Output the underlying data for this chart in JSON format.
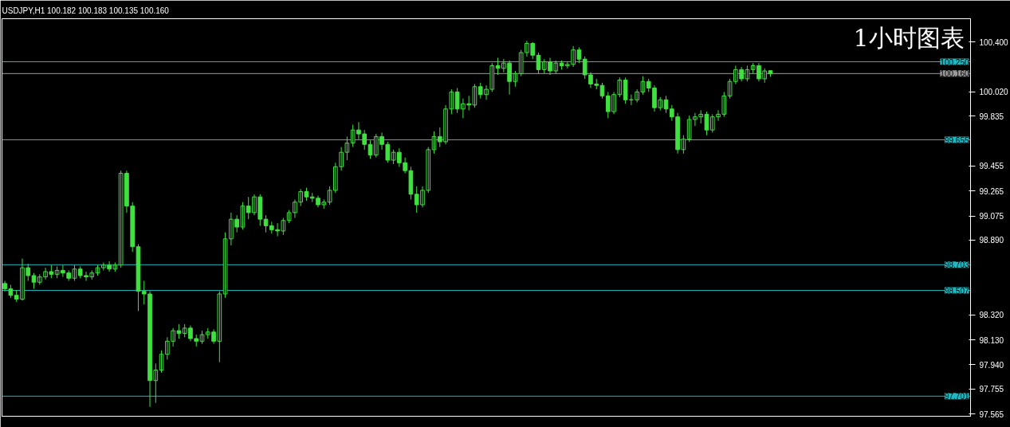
{
  "chart_data": {
    "type": "candlestick",
    "title": "USDJPY,H1  100.182 100.183 100.135 100.160",
    "annotations": [
      "1小时图表"
    ],
    "categories": [
      null,
      null,
      null,
      null,
      null,
      null,
      null,
      null,
      null,
      null,
      null,
      null,
      null,
      null,
      null,
      null,
      null,
      null,
      null,
      null,
      null,
      null,
      null,
      null,
      null,
      null,
      null,
      null,
      null,
      null,
      null,
      null,
      null,
      null,
      null,
      null,
      null,
      null,
      null,
      null,
      null,
      null,
      null,
      null,
      null,
      null,
      null,
      null,
      null,
      null,
      null,
      null,
      null,
      null,
      null,
      null,
      null,
      null,
      null,
      null,
      null,
      null,
      null,
      null,
      null,
      null,
      null,
      null,
      null,
      null,
      null,
      null,
      null,
      null,
      null,
      null,
      null,
      null,
      null,
      null,
      null,
      null,
      null,
      null,
      null,
      null,
      null,
      null,
      null,
      null,
      null,
      null,
      null,
      null,
      null,
      null,
      null,
      null,
      null,
      null,
      null,
      null,
      null,
      null,
      null,
      null,
      null,
      null,
      null,
      null,
      null,
      null,
      null,
      null,
      null,
      null,
      null,
      null,
      null,
      null,
      null,
      null,
      null,
      null,
      null,
      null,
      null,
      null,
      null,
      null,
      null,
      null,
      null,
      null,
      null,
      null,
      null,
      null,
      null,
      null,
      null,
      null,
      null,
      null,
      null,
      null,
      null,
      null,
      null,
      null,
      null,
      null,
      null,
      null,
      null,
      null,
      null,
      null,
      null,
      null,
      null,
      null,
      null,
      null,
      null,
      null,
      null
    ],
    "series": [
      {
        "color": "#40e040",
        "ohlc": [
          [
            98.56,
            98.58,
            98.5,
            98.52
          ],
          [
            98.52,
            98.55,
            98.45,
            98.47
          ],
          [
            98.47,
            98.51,
            98.42,
            98.44
          ],
          [
            98.44,
            98.75,
            98.43,
            98.68
          ],
          [
            98.68,
            98.71,
            98.58,
            98.62
          ],
          [
            98.62,
            98.64,
            98.52,
            98.57
          ],
          [
            98.57,
            98.63,
            98.55,
            98.61
          ],
          [
            98.61,
            98.68,
            98.59,
            98.65
          ],
          [
            98.65,
            98.7,
            98.6,
            98.63
          ],
          [
            98.63,
            98.69,
            98.6,
            98.66
          ],
          [
            98.66,
            98.7,
            98.61,
            98.64
          ],
          [
            98.64,
            98.66,
            98.58,
            98.6
          ],
          [
            98.6,
            98.7,
            98.58,
            98.67
          ],
          [
            98.67,
            98.69,
            98.6,
            98.62
          ],
          [
            98.62,
            98.65,
            98.58,
            98.61
          ],
          [
            98.61,
            98.66,
            98.59,
            98.64
          ],
          [
            98.64,
            98.7,
            98.62,
            98.68
          ],
          [
            98.68,
            98.72,
            98.66,
            98.7
          ],
          [
            98.7,
            98.73,
            98.65,
            98.67
          ],
          [
            98.67,
            98.72,
            98.65,
            98.7
          ],
          [
            98.7,
            99.42,
            98.68,
            99.4
          ],
          [
            99.4,
            99.42,
            99.1,
            99.15
          ],
          [
            99.15,
            99.18,
            98.8,
            98.84
          ],
          [
            98.84,
            98.86,
            98.35,
            98.5
          ],
          [
            98.5,
            98.58,
            98.4,
            98.48
          ],
          [
            98.48,
            98.5,
            97.62,
            97.82
          ],
          [
            97.82,
            97.95,
            97.65,
            97.9
          ],
          [
            97.9,
            98.05,
            97.88,
            98.02
          ],
          [
            98.02,
            98.15,
            97.98,
            98.12
          ],
          [
            98.12,
            98.22,
            98.08,
            98.2
          ],
          [
            98.2,
            98.25,
            98.14,
            98.18
          ],
          [
            98.18,
            98.25,
            98.15,
            98.22
          ],
          [
            98.22,
            98.24,
            98.12,
            98.14
          ],
          [
            98.14,
            98.17,
            98.08,
            98.12
          ],
          [
            98.12,
            98.2,
            98.1,
            98.17
          ],
          [
            98.17,
            98.22,
            98.14,
            98.19
          ],
          [
            98.19,
            98.21,
            98.1,
            98.12
          ],
          [
            98.12,
            98.5,
            97.96,
            98.48
          ],
          [
            98.48,
            98.95,
            98.45,
            98.9
          ],
          [
            98.9,
            99.1,
            98.85,
            99.05
          ],
          [
            99.05,
            99.08,
            98.95,
            98.99
          ],
          [
            98.99,
            99.18,
            98.97,
            99.15
          ],
          [
            99.15,
            99.22,
            99.05,
            99.1
          ],
          [
            99.1,
            99.24,
            99.08,
            99.22
          ],
          [
            99.22,
            99.24,
            99.0,
            99.05
          ],
          [
            99.05,
            99.08,
            98.95,
            99.0
          ],
          [
            99.0,
            99.03,
            98.94,
            98.97
          ],
          [
            98.97,
            99.02,
            98.92,
            98.96
          ],
          [
            98.96,
            99.06,
            98.93,
            99.04
          ],
          [
            99.04,
            99.12,
            99.02,
            99.1
          ],
          [
            99.1,
            99.2,
            99.06,
            99.18
          ],
          [
            99.18,
            99.28,
            99.15,
            99.26
          ],
          [
            99.26,
            99.29,
            99.19,
            99.22
          ],
          [
            99.22,
            99.25,
            99.18,
            99.21
          ],
          [
            99.21,
            99.23,
            99.14,
            99.16
          ],
          [
            99.16,
            99.2,
            99.13,
            99.18
          ],
          [
            99.18,
            99.3,
            99.16,
            99.27
          ],
          [
            99.27,
            99.48,
            99.25,
            99.45
          ],
          [
            99.45,
            99.6,
            99.42,
            99.56
          ],
          [
            99.56,
            99.68,
            99.5,
            99.63
          ],
          [
            99.63,
            99.77,
            99.6,
            99.73
          ],
          [
            99.73,
            99.79,
            99.66,
            99.7
          ],
          [
            99.7,
            99.73,
            99.58,
            99.62
          ],
          [
            99.62,
            99.65,
            99.51,
            99.54
          ],
          [
            99.54,
            99.7,
            99.52,
            99.68
          ],
          [
            99.68,
            99.71,
            99.58,
            99.62
          ],
          [
            99.62,
            99.64,
            99.48,
            99.5
          ],
          [
            99.5,
            99.58,
            99.47,
            99.56
          ],
          [
            99.56,
            99.59,
            99.45,
            99.48
          ],
          [
            99.48,
            99.52,
            99.4,
            99.42
          ],
          [
            99.42,
            99.45,
            99.2,
            99.24
          ],
          [
            99.24,
            99.3,
            99.1,
            99.16
          ],
          [
            99.16,
            99.3,
            99.14,
            99.27
          ],
          [
            99.27,
            99.6,
            99.25,
            99.58
          ],
          [
            99.58,
            99.72,
            99.55,
            99.68
          ],
          [
            99.68,
            99.75,
            99.6,
            99.64
          ],
          [
            99.64,
            99.92,
            99.62,
            99.89
          ],
          [
            99.89,
            100.04,
            99.85,
            100.02
          ],
          [
            100.02,
            100.05,
            99.86,
            99.89
          ],
          [
            99.89,
            99.97,
            99.82,
            99.93
          ],
          [
            99.93,
            99.99,
            99.88,
            99.92
          ],
          [
            99.92,
            100.08,
            99.9,
            100.06
          ],
          [
            100.06,
            100.09,
            99.97,
            100.0
          ],
          [
            100.0,
            100.07,
            99.96,
            100.04
          ],
          [
            100.04,
            100.24,
            100.02,
            100.22
          ],
          [
            100.22,
            100.28,
            100.15,
            100.2
          ],
          [
            100.2,
            100.27,
            100.17,
            100.24
          ],
          [
            100.24,
            100.26,
            100.0,
            100.1
          ],
          [
            100.1,
            100.18,
            100.06,
            100.16
          ],
          [
            100.16,
            100.34,
            100.14,
            100.32
          ],
          [
            100.32,
            100.41,
            100.29,
            100.39
          ],
          [
            100.39,
            100.4,
            100.27,
            100.3
          ],
          [
            100.3,
            100.32,
            100.16,
            100.19
          ],
          [
            100.19,
            100.27,
            100.16,
            100.25
          ],
          [
            100.25,
            100.28,
            100.15,
            100.18
          ],
          [
            100.18,
            100.26,
            100.16,
            100.24
          ],
          [
            100.24,
            100.26,
            100.19,
            100.22
          ],
          [
            100.22,
            100.25,
            100.2,
            100.23
          ],
          [
            100.23,
            100.37,
            100.21,
            100.34
          ],
          [
            100.34,
            100.36,
            100.24,
            100.27
          ],
          [
            100.27,
            100.29,
            100.12,
            100.15
          ],
          [
            100.15,
            100.17,
            100.05,
            100.08
          ],
          [
            100.08,
            100.12,
            100.04,
            100.07
          ],
          [
            100.07,
            100.09,
            99.97,
            99.99
          ],
          [
            99.99,
            100.02,
            99.82,
            99.87
          ],
          [
            99.87,
            100.02,
            99.85,
            100.0
          ],
          [
            100.0,
            100.13,
            99.98,
            100.11
          ],
          [
            100.11,
            100.13,
            99.93,
            99.96
          ],
          [
            99.96,
            100.0,
            99.92,
            99.96
          ],
          [
            99.96,
            100.04,
            99.94,
            100.02
          ],
          [
            100.02,
            100.14,
            100.0,
            100.1
          ],
          [
            100.1,
            100.12,
            100.02,
            100.05
          ],
          [
            100.05,
            100.07,
            99.87,
            99.9
          ],
          [
            99.9,
            99.98,
            99.88,
            99.96
          ],
          [
            99.96,
            99.99,
            99.86,
            99.89
          ],
          [
            99.89,
            99.92,
            99.8,
            99.83
          ],
          [
            99.83,
            99.86,
            99.55,
            99.58
          ],
          [
            99.58,
            99.69,
            99.55,
            99.66
          ],
          [
            99.66,
            99.84,
            99.64,
            99.81
          ],
          [
            99.81,
            99.86,
            99.76,
            99.83
          ],
          [
            99.83,
            99.88,
            99.78,
            99.85
          ],
          [
            99.85,
            99.87,
            99.69,
            99.73
          ],
          [
            99.73,
            99.85,
            99.71,
            99.83
          ],
          [
            99.83,
            99.88,
            99.8,
            99.85
          ],
          [
            99.85,
            100.02,
            99.83,
            99.99
          ],
          [
            99.99,
            100.12,
            99.97,
            100.1
          ],
          [
            100.1,
            100.22,
            100.08,
            100.19
          ],
          [
            100.19,
            100.21,
            100.1,
            100.12
          ],
          [
            100.12,
            100.22,
            100.1,
            100.19
          ],
          [
            100.19,
            100.24,
            100.16,
            100.22
          ],
          [
            100.22,
            100.24,
            100.1,
            100.12
          ],
          [
            100.12,
            100.2,
            100.09,
            100.18
          ],
          [
            100.182,
            100.183,
            100.135,
            100.16
          ],
          null,
          null,
          null,
          null,
          null,
          null,
          null,
          null,
          null,
          null,
          null,
          null,
          null,
          null,
          null,
          null,
          null,
          null,
          null,
          null,
          null,
          null,
          null,
          null,
          null,
          null,
          null,
          null,
          null,
          null,
          null,
          null,
          null,
          null
        ]
      }
    ],
    "ylim": [
      97.548,
      100.578
    ],
    "yticks": [
      {
        "value": 100.4,
        "label": "100.400"
      },
      {
        "value": 100.02,
        "label": "100.020"
      },
      99.835,
      99.455,
      99.265,
      99.075,
      {
        "value": 98.89,
        "label": "98.890"
      },
      {
        "value": 98.32,
        "label": "98.320"
      },
      {
        "value": 98.13,
        "label": "98.130"
      },
      {
        "value": 97.94,
        "label": "97.940"
      },
      97.755,
      97.565
    ],
    "ref_lines": [
      {
        "axis": "y",
        "value": 100.25,
        "label": "100.250",
        "color": "#20b8c0"
      },
      {
        "axis": "y",
        "value": 100.16,
        "label": "100.160",
        "color": "#9a9a9a"
      },
      {
        "axis": "y",
        "value": 99.655,
        "label": "99.655",
        "color": "#20b8c0"
      },
      {
        "axis": "y",
        "value": 98.703,
        "label": "98.703",
        "color": "#20b8c0"
      },
      {
        "axis": "y",
        "value": 98.507,
        "label": "98.507",
        "color": "#20b8c0"
      },
      {
        "axis": "y",
        "value": 97.701,
        "label": "97.701",
        "color": "#20b8c0"
      }
    ],
    "tick_labels": "y"
  }
}
